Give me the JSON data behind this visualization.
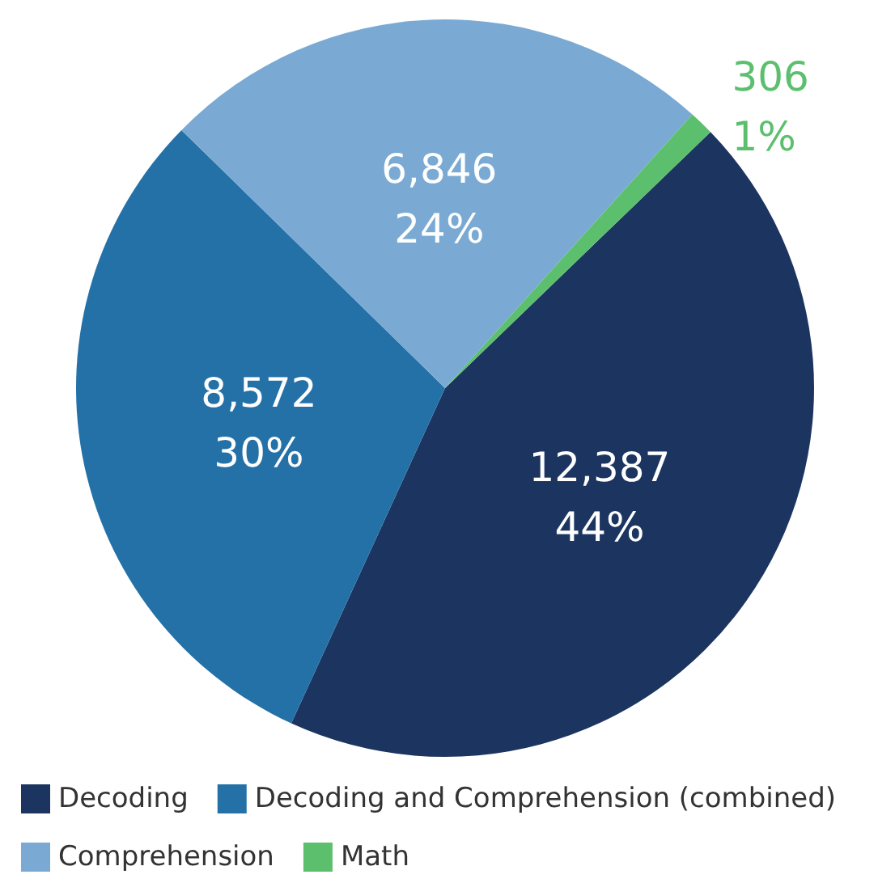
{
  "chart_data": {
    "type": "pie",
    "categories": [
      "Decoding",
      "Decoding and Comprehension (combined)",
      "Comprehension",
      "Math"
    ],
    "values": [
      12387,
      8572,
      6846,
      306
    ],
    "colors": [
      "#1c3560",
      "#2471a8",
      "#7aaad3",
      "#5cbf6e"
    ],
    "value_labels": [
      "12,387\n44%",
      "8,572\n30%",
      "6,846\n24%",
      "306\n1%"
    ],
    "legend": "bottom"
  }
}
